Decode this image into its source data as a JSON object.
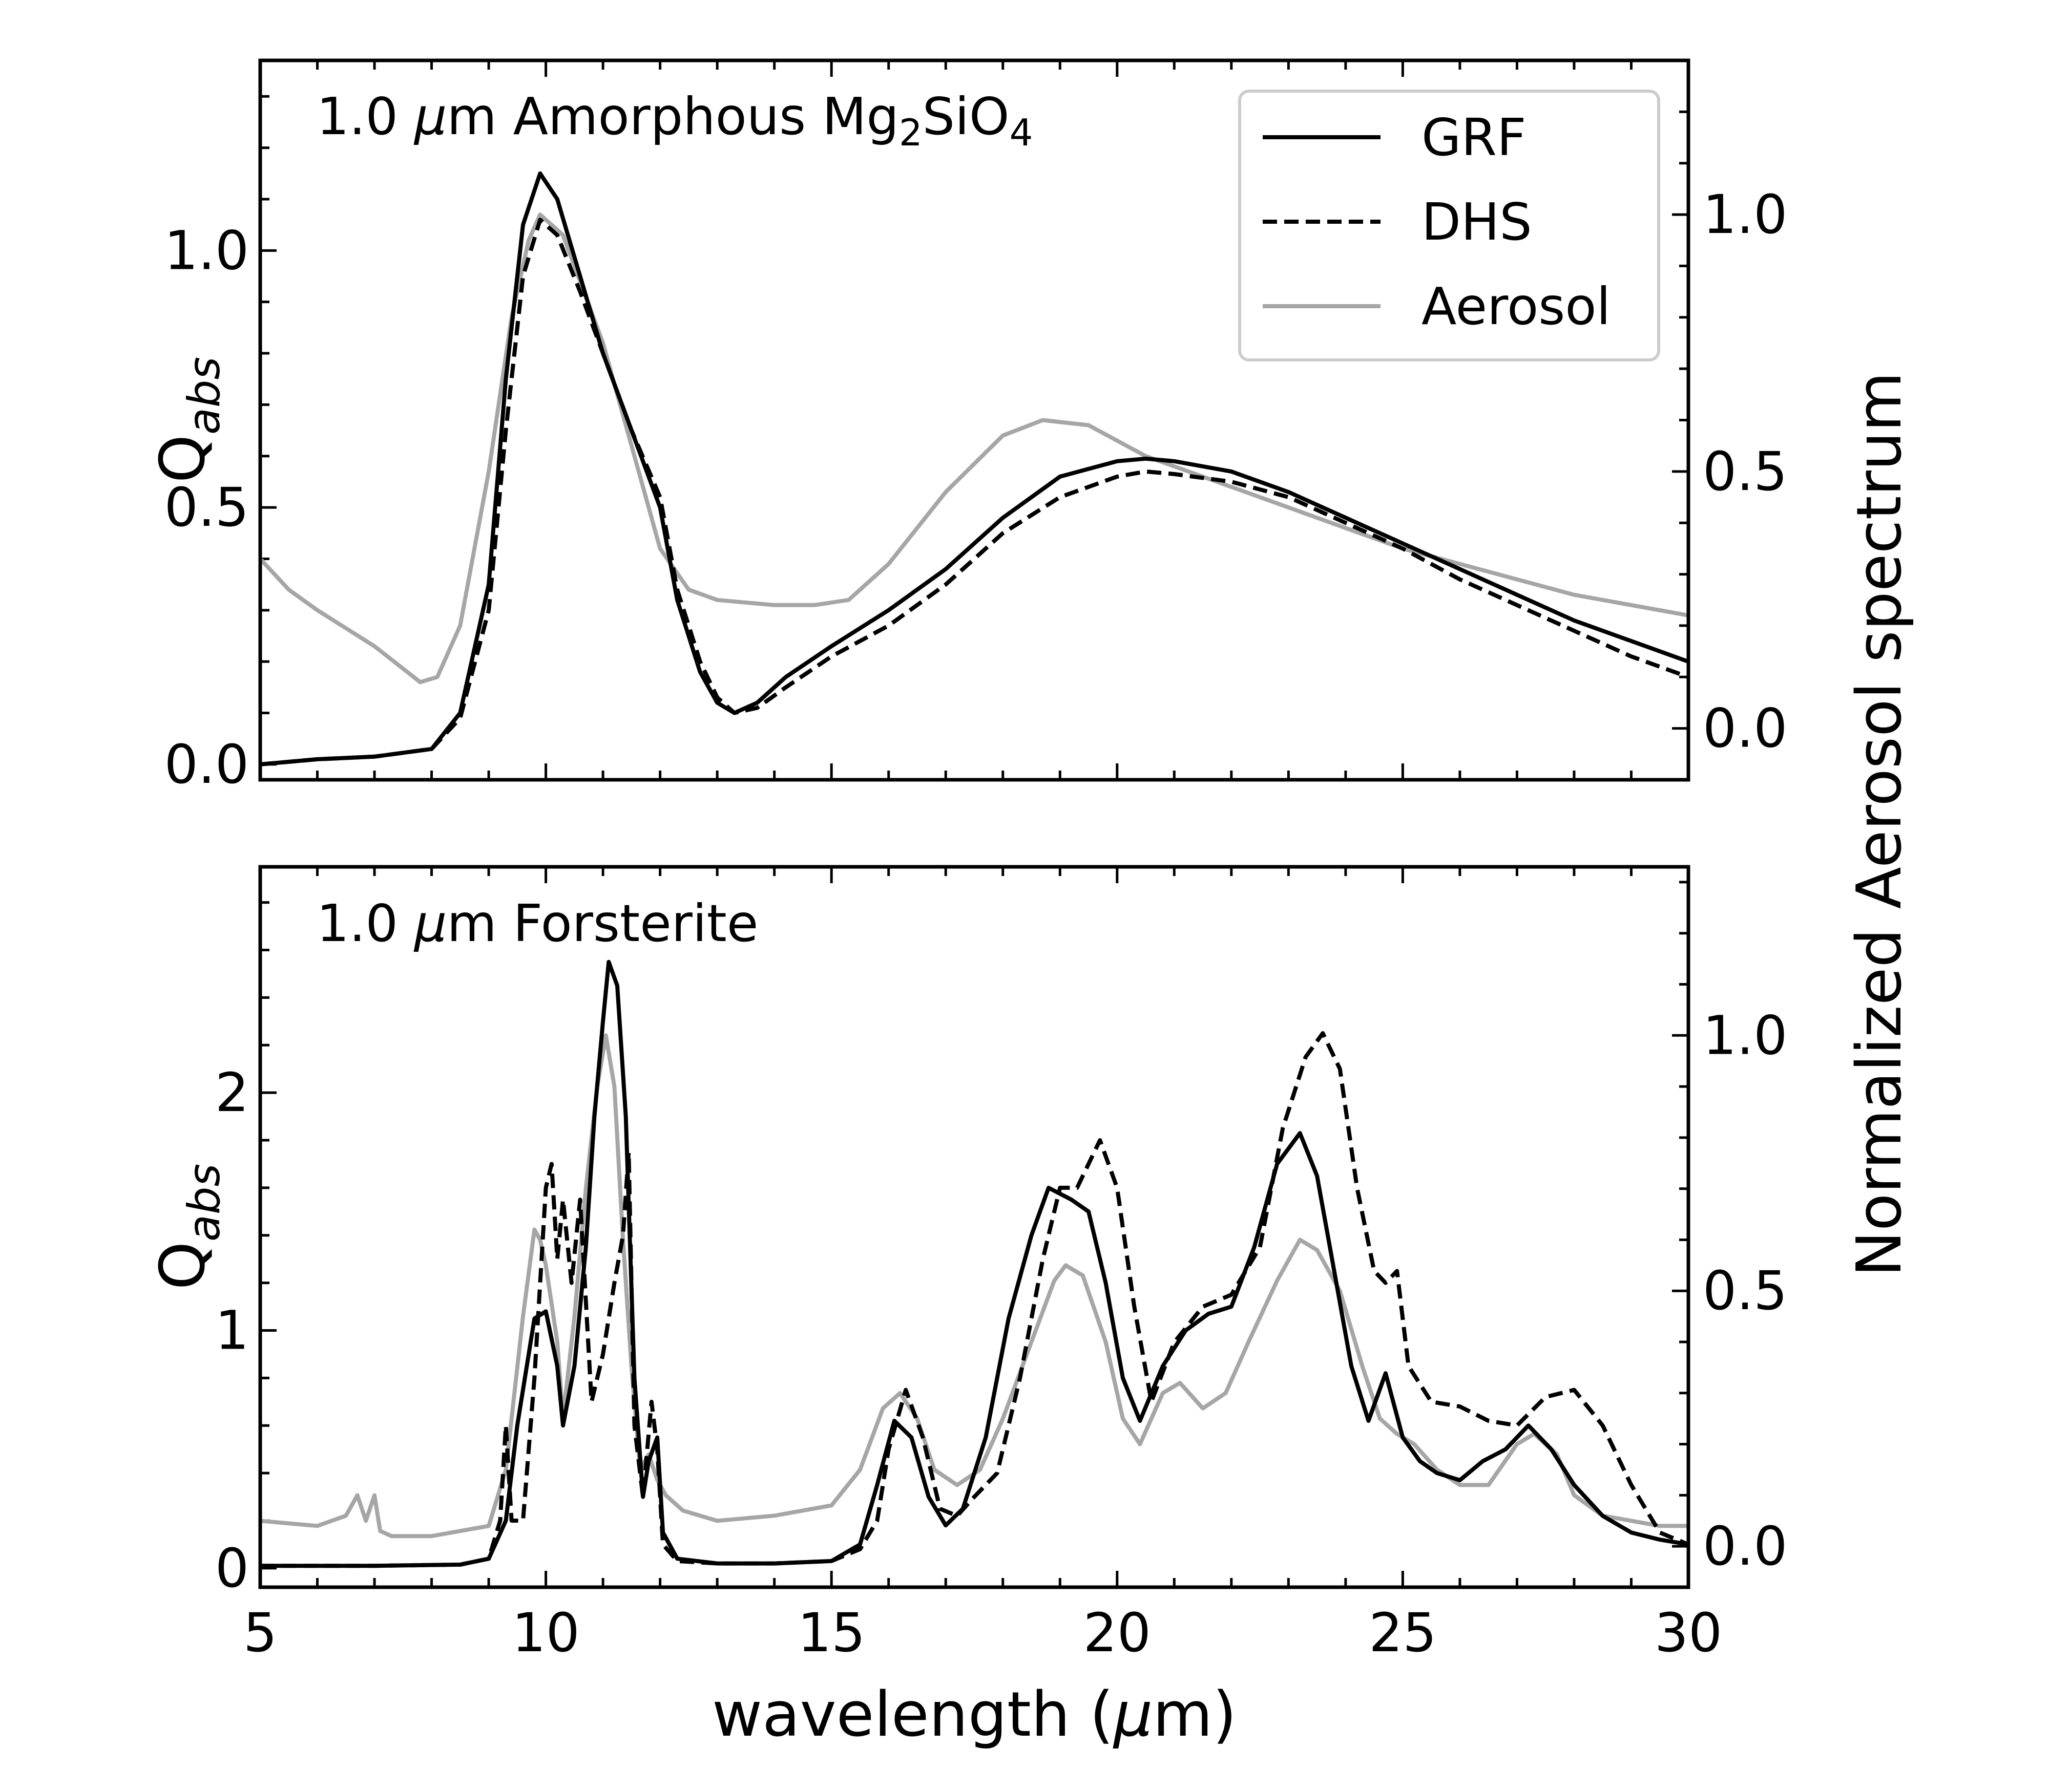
{
  "figure": {
    "xlabel_prefix": "wavelength (",
    "xlabel_mu": "μ",
    "xlabel_suffix": "m)",
    "ylabel_main": "Q",
    "ylabel_sub": "abs",
    "right_ylabel": "Normalized Aerosol spectrum",
    "legend": {
      "grf": "GRF",
      "dhs": "DHS",
      "aerosol": "Aerosol"
    },
    "colors": {
      "grf": "#000000",
      "dhs": "#000000",
      "aerosol": "#a6a6a6"
    }
  },
  "chart_data": [
    {
      "type": "line",
      "panel": "top",
      "title_parts": {
        "size": "1.0 ",
        "mu": "μ",
        "unit_name": "m Amorphous Mg",
        "sub1": "2",
        "mid": "SiO",
        "sub2": "4"
      },
      "xlim": [
        5,
        30
      ],
      "ylim": [
        -0.03,
        1.37
      ],
      "y2lim": [
        -0.1,
        1.3
      ],
      "xticks": [
        5,
        10,
        15,
        20,
        25,
        30
      ],
      "yticks": [
        0.0,
        0.5,
        1.0
      ],
      "ytick_labels": [
        "0.0",
        "0.5",
        "1.0"
      ],
      "y2ticks": [
        0.0,
        0.5,
        1.0
      ],
      "y2tick_labels": [
        "0.0",
        "0.5",
        "1.0"
      ],
      "legend_position": "top-right",
      "series": [
        {
          "name": "GRF",
          "style": "solid",
          "axis": "left",
          "x": [
            5,
            6,
            7,
            8,
            8.5,
            9,
            9.3,
            9.6,
            9.9,
            10.2,
            10.6,
            11,
            11.5,
            12,
            12.3,
            12.7,
            13,
            13.3,
            13.7,
            14.2,
            15,
            16,
            17,
            18,
            19,
            20,
            20.5,
            21,
            22,
            23,
            24,
            25,
            26,
            27,
            28,
            29,
            30
          ],
          "y": [
            0.0,
            0.01,
            0.015,
            0.03,
            0.1,
            0.35,
            0.75,
            1.05,
            1.15,
            1.1,
            0.95,
            0.8,
            0.65,
            0.5,
            0.32,
            0.18,
            0.12,
            0.1,
            0.12,
            0.17,
            0.23,
            0.3,
            0.38,
            0.48,
            0.56,
            0.59,
            0.595,
            0.59,
            0.57,
            0.53,
            0.48,
            0.43,
            0.38,
            0.33,
            0.28,
            0.24,
            0.2
          ]
        },
        {
          "name": "DHS",
          "style": "dashed",
          "axis": "left",
          "x": [
            5,
            6,
            7,
            8,
            8.5,
            9,
            9.3,
            9.6,
            9.9,
            10.2,
            10.6,
            11,
            11.5,
            12,
            12.3,
            12.7,
            13,
            13.3,
            13.7,
            14.2,
            15,
            16,
            17,
            18,
            19,
            20,
            20.5,
            21,
            22,
            23,
            24,
            25,
            26,
            27,
            28,
            29,
            30
          ],
          "y": [
            0.0,
            0.01,
            0.015,
            0.03,
            0.09,
            0.3,
            0.65,
            0.95,
            1.06,
            1.03,
            0.92,
            0.8,
            0.65,
            0.52,
            0.34,
            0.2,
            0.13,
            0.1,
            0.11,
            0.15,
            0.21,
            0.27,
            0.35,
            0.45,
            0.52,
            0.56,
            0.57,
            0.565,
            0.55,
            0.52,
            0.47,
            0.42,
            0.36,
            0.31,
            0.26,
            0.21,
            0.17
          ]
        },
        {
          "name": "Aerosol",
          "style": "solid",
          "axis": "right",
          "x": [
            5,
            5.5,
            6,
            7,
            7.8,
            8.1,
            8.5,
            9,
            9.4,
            9.7,
            9.9,
            10.3,
            11,
            11.5,
            12,
            12.5,
            13,
            14,
            14.7,
            15.3,
            16,
            17,
            18,
            18.7,
            19.5,
            20.5,
            22,
            23,
            24,
            25,
            26,
            27,
            28,
            29,
            30
          ],
          "y": [
            0.33,
            0.27,
            0.23,
            0.16,
            0.09,
            0.1,
            0.2,
            0.5,
            0.8,
            0.95,
            1.0,
            0.96,
            0.75,
            0.55,
            0.35,
            0.27,
            0.25,
            0.24,
            0.24,
            0.25,
            0.32,
            0.46,
            0.57,
            0.6,
            0.59,
            0.53,
            0.47,
            0.43,
            0.39,
            0.35,
            0.32,
            0.29,
            0.26,
            0.24,
            0.22
          ]
        }
      ]
    },
    {
      "type": "line",
      "panel": "bottom",
      "title_parts": {
        "size": "1.0 ",
        "mu": "μ",
        "unit_name": "m Forsterite"
      },
      "xlim": [
        5,
        30
      ],
      "xticks": [
        5,
        10,
        15,
        20,
        25,
        30
      ],
      "xtick_labels": [
        "5",
        "10",
        "15",
        "20",
        "25",
        "30"
      ],
      "ylim": [
        -0.08,
        2.95
      ],
      "y2lim": [
        -0.08,
        1.33
      ],
      "yticks": [
        0,
        1,
        2
      ],
      "ytick_labels": [
        "0",
        "1",
        "2"
      ],
      "y2ticks": [
        0.0,
        0.5,
        1.0
      ],
      "y2tick_labels": [
        "0.0",
        "0.5",
        "1.0"
      ],
      "series": [
        {
          "name": "GRF",
          "style": "solid",
          "axis": "left",
          "x": [
            5,
            7,
            8.5,
            9,
            9.3,
            9.5,
            9.8,
            10.0,
            10.2,
            10.3,
            10.5,
            10.7,
            10.85,
            11.0,
            11.1,
            11.25,
            11.4,
            11.55,
            11.7,
            11.8,
            11.95,
            12.05,
            12.3,
            13,
            14,
            15,
            15.5,
            15.8,
            16.1,
            16.4,
            16.7,
            17.0,
            17.3,
            17.7,
            18.1,
            18.5,
            18.8,
            19.2,
            19.5,
            19.8,
            20.1,
            20.4,
            20.8,
            21.2,
            21.6,
            22.0,
            22.4,
            22.8,
            23.2,
            23.5,
            23.8,
            24.1,
            24.4,
            24.7,
            25.0,
            25.3,
            25.6,
            26.0,
            26.4,
            26.8,
            27.2,
            27.6,
            28.0,
            28.5,
            29.0,
            29.5,
            30
          ],
          "y": [
            0.01,
            0.01,
            0.015,
            0.04,
            0.2,
            0.6,
            1.05,
            1.08,
            0.85,
            0.6,
            0.85,
            1.35,
            1.9,
            2.3,
            2.55,
            2.45,
            1.9,
            0.8,
            0.3,
            0.45,
            0.55,
            0.15,
            0.04,
            0.02,
            0.02,
            0.03,
            0.1,
            0.35,
            0.62,
            0.55,
            0.3,
            0.18,
            0.25,
            0.55,
            1.05,
            1.4,
            1.6,
            1.55,
            1.5,
            1.2,
            0.8,
            0.62,
            0.85,
            1.0,
            1.07,
            1.1,
            1.35,
            1.7,
            1.83,
            1.65,
            1.25,
            0.85,
            0.62,
            0.82,
            0.55,
            0.45,
            0.4,
            0.37,
            0.45,
            0.5,
            0.6,
            0.5,
            0.35,
            0.22,
            0.15,
            0.12,
            0.1
          ]
        },
        {
          "name": "DHS",
          "style": "dashed",
          "axis": "left",
          "x": [
            5,
            7,
            8.5,
            9,
            9.2,
            9.3,
            9.4,
            9.6,
            9.8,
            10.0,
            10.1,
            10.2,
            10.3,
            10.45,
            10.6,
            10.8,
            11.0,
            11.2,
            11.35,
            11.45,
            11.55,
            11.7,
            11.85,
            11.95,
            12.05,
            12.3,
            13,
            14,
            15,
            15.5,
            15.8,
            16.0,
            16.3,
            16.6,
            16.9,
            17.2,
            17.5,
            17.9,
            18.3,
            18.7,
            19.0,
            19.3,
            19.7,
            20.0,
            20.3,
            20.6,
            21.0,
            21.5,
            22.0,
            22.5,
            22.9,
            23.3,
            23.6,
            23.9,
            24.2,
            24.5,
            24.7,
            24.9,
            25.1,
            25.5,
            26.0,
            26.5,
            27.0,
            27.5,
            28.0,
            28.5,
            29.0,
            29.5,
            30
          ],
          "y": [
            0.01,
            0.01,
            0.015,
            0.04,
            0.2,
            0.6,
            0.2,
            0.2,
            0.8,
            1.6,
            1.7,
            1.3,
            1.55,
            1.2,
            1.55,
            0.7,
            0.9,
            1.2,
            1.4,
            1.75,
            0.6,
            0.3,
            0.7,
            0.5,
            0.1,
            0.03,
            0.02,
            0.02,
            0.03,
            0.08,
            0.2,
            0.5,
            0.75,
            0.55,
            0.25,
            0.22,
            0.3,
            0.4,
            0.8,
            1.3,
            1.6,
            1.6,
            1.8,
            1.6,
            1.1,
            0.7,
            0.95,
            1.1,
            1.15,
            1.35,
            1.85,
            2.15,
            2.25,
            2.1,
            1.6,
            1.25,
            1.2,
            1.25,
            0.85,
            0.7,
            0.68,
            0.62,
            0.6,
            0.72,
            0.75,
            0.6,
            0.35,
            0.15,
            0.1
          ]
        },
        {
          "name": "Aerosol",
          "style": "solid",
          "axis": "right",
          "x": [
            5,
            6,
            6.5,
            6.7,
            6.85,
            7.0,
            7.1,
            7.3,
            8,
            9,
            9.3,
            9.6,
            9.8,
            9.9,
            10.0,
            10.2,
            10.3,
            10.5,
            10.7,
            10.9,
            11.05,
            11.2,
            11.35,
            11.5,
            11.65,
            11.8,
            11.95,
            12.1,
            12.4,
            13,
            14,
            15,
            15.5,
            15.9,
            16.2,
            16.5,
            16.8,
            17.2,
            17.6,
            18.0,
            18.5,
            18.9,
            19.1,
            19.4,
            19.8,
            20.1,
            20.4,
            20.8,
            21.1,
            21.5,
            21.9,
            22.3,
            22.8,
            23.2,
            23.5,
            23.9,
            24.3,
            24.6,
            24.9,
            25.2,
            25.6,
            26.0,
            26.5,
            27.0,
            27.3,
            27.7,
            28.0,
            28.5,
            29,
            29.5,
            30
          ],
          "y": [
            0.05,
            0.04,
            0.06,
            0.1,
            0.05,
            0.1,
            0.03,
            0.02,
            0.02,
            0.04,
            0.15,
            0.45,
            0.62,
            0.6,
            0.55,
            0.4,
            0.25,
            0.45,
            0.7,
            0.9,
            1.0,
            0.9,
            0.6,
            0.35,
            0.15,
            0.18,
            0.13,
            0.1,
            0.07,
            0.05,
            0.06,
            0.08,
            0.15,
            0.27,
            0.3,
            0.25,
            0.15,
            0.12,
            0.15,
            0.25,
            0.4,
            0.52,
            0.55,
            0.53,
            0.4,
            0.25,
            0.2,
            0.3,
            0.32,
            0.27,
            0.3,
            0.4,
            0.52,
            0.6,
            0.58,
            0.5,
            0.35,
            0.25,
            0.22,
            0.2,
            0.15,
            0.12,
            0.12,
            0.2,
            0.22,
            0.18,
            0.1,
            0.06,
            0.05,
            0.04,
            0.04
          ]
        }
      ]
    }
  ]
}
